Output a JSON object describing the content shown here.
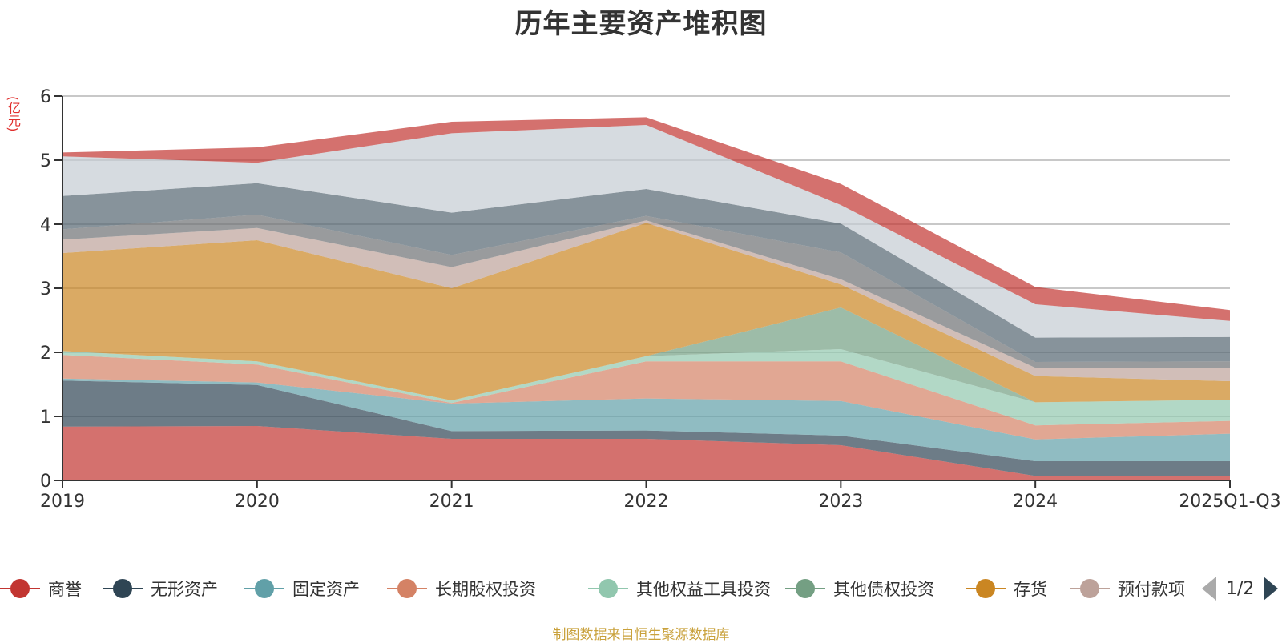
{
  "chart_data": {
    "type": "area",
    "stacked": true,
    "title": "历年主要资产堆积图",
    "ylabel": "(亿元)",
    "xlabel": "",
    "ylim": [
      0,
      6
    ],
    "yticks": [
      0,
      1,
      2,
      3,
      4,
      5,
      6
    ],
    "grid": true,
    "categories": [
      "2019",
      "2020",
      "2021",
      "2022",
      "2023",
      "2024",
      "2025Q1-Q3"
    ],
    "series": [
      {
        "name": "商誉",
        "color": "#c23531",
        "values": [
          0.84,
          0.85,
          0.65,
          0.65,
          0.55,
          0.07,
          0.07
        ]
      },
      {
        "name": "无形资产",
        "color": "#2f4554",
        "values": [
          0.72,
          0.64,
          0.12,
          0.13,
          0.15,
          0.23,
          0.23
        ]
      },
      {
        "name": "固定资产",
        "color": "#61a0a8",
        "values": [
          0.03,
          0.04,
          0.43,
          0.5,
          0.54,
          0.34,
          0.43
        ]
      },
      {
        "name": "长期股权投资",
        "color": "#d48265",
        "values": [
          0.37,
          0.28,
          0.01,
          0.58,
          0.62,
          0.22,
          0.2
        ]
      },
      {
        "name": "其他权益工具投资",
        "color": "#91c7ae",
        "values": [
          0.06,
          0.05,
          0.04,
          0.08,
          0.19,
          0.36,
          0.33
        ]
      },
      {
        "name": "其他债权投资",
        "color": "#749f83",
        "values": [
          0.0,
          0.0,
          0.0,
          0.0,
          0.65,
          0.0,
          0.0
        ]
      },
      {
        "name": "存货",
        "color": "#ca8622",
        "values": [
          1.53,
          1.89,
          1.75,
          2.08,
          0.36,
          0.41,
          0.29
        ]
      },
      {
        "name": "预付款项",
        "color": "#bda29a",
        "values": [
          0.21,
          0.19,
          0.33,
          0.04,
          0.08,
          0.13,
          0.21
        ]
      },
      {
        "name": "",
        "color": "#6e7074",
        "values": [
          0.16,
          0.21,
          0.19,
          0.07,
          0.42,
          0.09,
          0.1
        ]
      },
      {
        "name": "",
        "color": "#546570",
        "values": [
          0.52,
          0.49,
          0.66,
          0.42,
          0.45,
          0.38,
          0.38
        ]
      },
      {
        "name": "",
        "color": "#c4ccd3",
        "values": [
          0.62,
          0.32,
          1.24,
          1.0,
          0.29,
          0.52,
          0.25
        ]
      },
      {
        "name": "",
        "color": "#c23531",
        "values": [
          0.06,
          0.24,
          0.18,
          0.12,
          0.33,
          0.27,
          0.17
        ]
      }
    ],
    "legend": {
      "placement": "bottom",
      "page": "1/2"
    }
  },
  "legend_items": [
    {
      "label": "商誉",
      "color": "#c23531"
    },
    {
      "label": "无形资产",
      "color": "#2f4554"
    },
    {
      "label": "固定资产",
      "color": "#61a0a8"
    },
    {
      "label": "长期股权投资",
      "color": "#d48265"
    },
    {
      "label": "其他权益工具投资",
      "color": "#91c7ae"
    },
    {
      "label": "其他债权投资",
      "color": "#749f83"
    },
    {
      "label": "存货",
      "color": "#ca8622"
    },
    {
      "label": "预付款项",
      "color": "#bda29a"
    }
  ],
  "pager": {
    "text": "1/2"
  },
  "source": "制图数据来自恒生聚源数据库"
}
